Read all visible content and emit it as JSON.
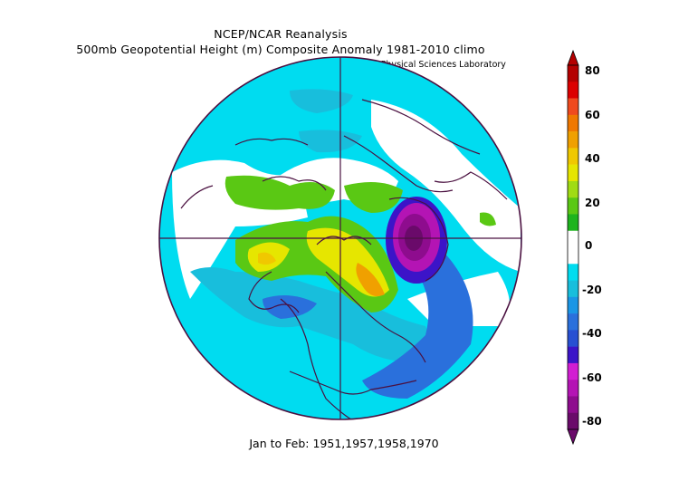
{
  "title": "NCEP/NCAR Reanalysis",
  "subtitle": "500mb Geopotential Height (m) Composite Anomaly 1981-2010 climo",
  "credit": "NOAA Physical Sciences Laboratory",
  "period": "Jan to Feb: 1951,1957,1958,1970",
  "colorbar": {
    "ticks": [
      "80",
      "60",
      "40",
      "20",
      "0",
      "-20",
      "-40",
      "-60",
      "-80"
    ],
    "colors": [
      "#6a0a6a",
      "#8e0c8e",
      "#b414b4",
      "#d21ed2",
      "#3c14c8",
      "#2850d2",
      "#2a70dc",
      "#1a96e6",
      "#18bedc",
      "#00dcf0",
      "#ffffff",
      "#ffffff",
      "#1eb41e",
      "#5ac814",
      "#a0dc14",
      "#e6e600",
      "#f0c800",
      "#f0a000",
      "#f07800",
      "#f04a1e",
      "#dc0000",
      "#b40000"
    ]
  }
}
